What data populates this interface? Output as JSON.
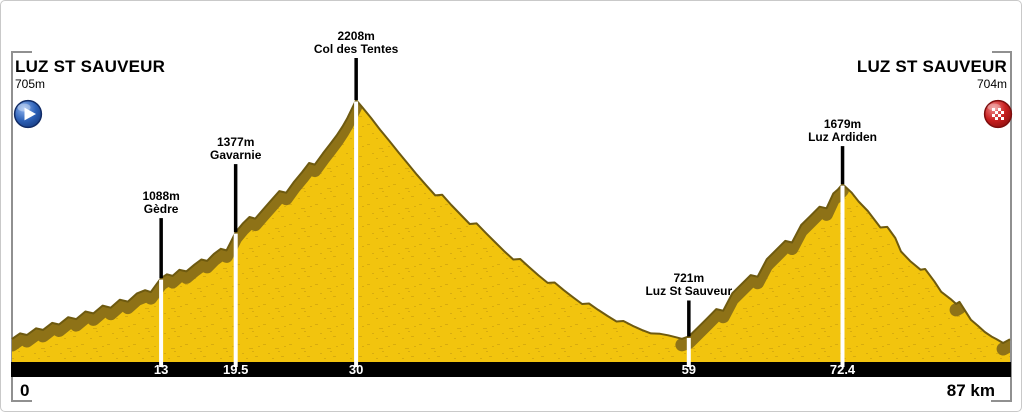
{
  "header": {
    "start": {
      "name": "LUZ ST SAUVEUR",
      "elevation_label": "705m"
    },
    "finish": {
      "name": "LUZ ST SAUVEUR",
      "elevation_label": "704m"
    }
  },
  "axis": {
    "origin_label": "0",
    "end_label": "87 km",
    "unit": "km",
    "tick_labels": [
      "13",
      "19.5",
      "30",
      "59",
      "72.4"
    ]
  },
  "icons": {
    "start": "play-icon",
    "finish": "checkered-finish-icon"
  },
  "colors": {
    "profile_fill": "#F2C40E",
    "profile_texture": "#B98F10",
    "climb_band": "#8E7217",
    "profile_edge": "#6E5A10",
    "km_bar": "#000000",
    "marker_line": "#FFFFFF",
    "label_stem": "#000000",
    "bracket": "#909090",
    "start_icon_blue": "#2E62B8",
    "finish_icon_red": "#C81E1E"
  },
  "chart_data": {
    "type": "area",
    "xlabel": "km",
    "ylabel": "elevation (m)",
    "x_range_km": [
      0,
      87
    ],
    "grid": false,
    "legend": false,
    "start_point": {
      "km": 0,
      "elevation_m": 705,
      "name": "Luz St Sauveur"
    },
    "finish_point": {
      "km": 87,
      "elevation_m": 704,
      "name": "Luz St Sauveur"
    },
    "climb_segments_km": [
      [
        0,
        30
      ],
      [
        59,
        72.4
      ]
    ],
    "markers": [
      {
        "km": 13,
        "elevation_m": 1088,
        "elevation_label": "1088m",
        "name": "Gèdre",
        "tick_label": "13"
      },
      {
        "km": 19.5,
        "elevation_m": 1377,
        "elevation_label": "1377m",
        "name": "Gavarnie",
        "tick_label": "19.5"
      },
      {
        "km": 30,
        "elevation_m": 2208,
        "elevation_label": "2208m",
        "name": "Col des Tentes",
        "tick_label": "30"
      },
      {
        "km": 59,
        "elevation_m": 721,
        "elevation_label": "721m",
        "name": "Luz St Sauveur",
        "tick_label": "59"
      },
      {
        "km": 72.4,
        "elevation_m": 1679,
        "elevation_label": "1679m",
        "name": "Luz Ardiden",
        "tick_label": "72.4"
      }
    ],
    "profile_km_elevation": [
      [
        0,
        705
      ],
      [
        0.7,
        740
      ],
      [
        1.3,
        730
      ],
      [
        2.1,
        772
      ],
      [
        2.7,
        762
      ],
      [
        3.5,
        806
      ],
      [
        4.1,
        796
      ],
      [
        4.9,
        842
      ],
      [
        5.6,
        830
      ],
      [
        6.4,
        878
      ],
      [
        7.1,
        866
      ],
      [
        7.9,
        915
      ],
      [
        8.6,
        902
      ],
      [
        9.4,
        952
      ],
      [
        10.1,
        940
      ],
      [
        10.9,
        992
      ],
      [
        11.6,
        1012
      ],
      [
        12.1,
        1000
      ],
      [
        12.55,
        1045
      ],
      [
        13,
        1088
      ],
      [
        13.5,
        1112
      ],
      [
        14,
        1102
      ],
      [
        14.6,
        1140
      ],
      [
        15.2,
        1130
      ],
      [
        15.9,
        1172
      ],
      [
        16.5,
        1205
      ],
      [
        17,
        1196
      ],
      [
        17.6,
        1240
      ],
      [
        18.2,
        1272
      ],
      [
        18.7,
        1262
      ],
      [
        19.1,
        1318
      ],
      [
        19.5,
        1377
      ],
      [
        20.1,
        1430
      ],
      [
        20.7,
        1472
      ],
      [
        21.2,
        1462
      ],
      [
        21.9,
        1520
      ],
      [
        22.6,
        1578
      ],
      [
        23.3,
        1635
      ],
      [
        23.9,
        1625
      ],
      [
        24.6,
        1695
      ],
      [
        25.3,
        1755
      ],
      [
        25.9,
        1812
      ],
      [
        26.4,
        1802
      ],
      [
        27.1,
        1872
      ],
      [
        27.7,
        1928
      ],
      [
        28.3,
        1985
      ],
      [
        28.8,
        2040
      ],
      [
        29.2,
        2090
      ],
      [
        29.6,
        2148
      ],
      [
        30,
        2208
      ],
      [
        30.5,
        2165
      ],
      [
        31.3,
        2095
      ],
      [
        32.1,
        2020
      ],
      [
        32.9,
        1950
      ],
      [
        33.7,
        1878
      ],
      [
        34.5,
        1808
      ],
      [
        35.3,
        1738
      ],
      [
        36.1,
        1672
      ],
      [
        36.9,
        1608
      ],
      [
        37.5,
        1612
      ],
      [
        38.3,
        1548
      ],
      [
        39.1,
        1488
      ],
      [
        39.9,
        1428
      ],
      [
        40.5,
        1432
      ],
      [
        41.3,
        1372
      ],
      [
        42.1,
        1315
      ],
      [
        42.9,
        1258
      ],
      [
        43.7,
        1205
      ],
      [
        44.3,
        1208
      ],
      [
        45.1,
        1155
      ],
      [
        45.9,
        1105
      ],
      [
        46.7,
        1058
      ],
      [
        47.3,
        1060
      ],
      [
        48.1,
        1012
      ],
      [
        48.9,
        968
      ],
      [
        49.7,
        925
      ],
      [
        50.3,
        928
      ],
      [
        51.1,
        888
      ],
      [
        51.9,
        850
      ],
      [
        52.7,
        815
      ],
      [
        53.3,
        818
      ],
      [
        54.1,
        788
      ],
      [
        54.9,
        762
      ],
      [
        55.7,
        740
      ],
      [
        56.5,
        738
      ],
      [
        57.2,
        728
      ],
      [
        57.9,
        716
      ],
      [
        58.4,
        706
      ],
      [
        59,
        721
      ],
      [
        59.8,
        778
      ],
      [
        60.6,
        835
      ],
      [
        61.4,
        893
      ],
      [
        62,
        883
      ],
      [
        62.8,
        993
      ],
      [
        63.6,
        1050
      ],
      [
        64.4,
        1107
      ],
      [
        65,
        1097
      ],
      [
        65.8,
        1207
      ],
      [
        66.6,
        1264
      ],
      [
        67.4,
        1322
      ],
      [
        68,
        1312
      ],
      [
        68.8,
        1422
      ],
      [
        69.6,
        1479
      ],
      [
        70.4,
        1537
      ],
      [
        71,
        1527
      ],
      [
        71.6,
        1620
      ],
      [
        72,
        1645
      ],
      [
        72.4,
        1679
      ],
      [
        73.2,
        1625
      ],
      [
        73.8,
        1570
      ],
      [
        74.6,
        1510
      ],
      [
        75.7,
        1406
      ],
      [
        76.3,
        1410
      ],
      [
        77,
        1340
      ],
      [
        77.5,
        1255
      ],
      [
        78.3,
        1195
      ],
      [
        79.2,
        1141
      ],
      [
        79.6,
        1145
      ],
      [
        80.4,
        1068
      ],
      [
        81,
        1002
      ],
      [
        81.8,
        958
      ],
      [
        82.3,
        926
      ],
      [
        82.6,
        938
      ],
      [
        83.6,
        825
      ],
      [
        84.2,
        788
      ],
      [
        84.8,
        749
      ],
      [
        85.4,
        720
      ],
      [
        85.8,
        705
      ],
      [
        86.4,
        680
      ],
      [
        86.7,
        692
      ],
      [
        87,
        704
      ]
    ]
  }
}
